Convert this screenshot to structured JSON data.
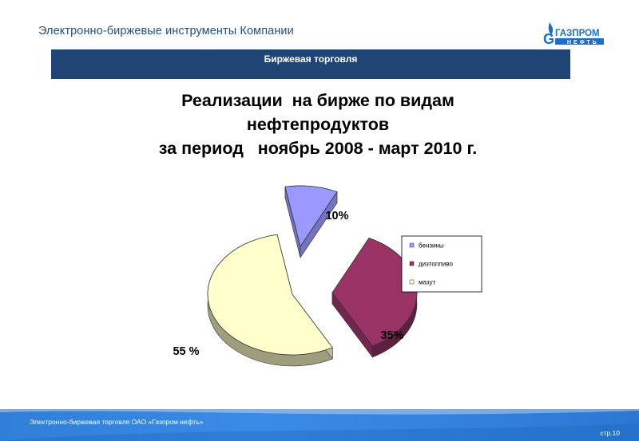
{
  "header": {
    "title": "Электронно-биржевые инструменты Компании",
    "logo_text_main": "ГАЗПРОМ",
    "logo_text_sub": "НЕФТЬ",
    "logo_letter": "G"
  },
  "section": {
    "title": "Биржевая торговля"
  },
  "chart_data": {
    "type": "pie",
    "title_lines": [
      "Реализации  на бирже по видам",
      "нефтепродуктов",
      "за период   ноябрь 2008 - март 2010 г."
    ],
    "categories": [
      "бензины",
      "дизтопливо",
      "мазут"
    ],
    "values": [
      10,
      35,
      55
    ],
    "data_labels": [
      "10%",
      "35%",
      "55 %"
    ],
    "colors": [
      "#9999ff",
      "#993366",
      "#ffffcc"
    ],
    "exploded": true,
    "style": "3d",
    "legend_position": "right"
  },
  "footer": {
    "text": "Электронно-биржевая торговля ОАО «Газпром нефть»",
    "page": "стр.10"
  }
}
